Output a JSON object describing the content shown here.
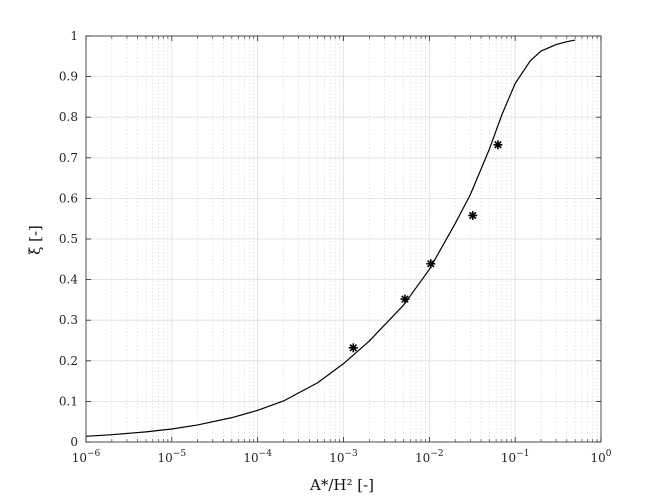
{
  "chart_data": {
    "type": "line",
    "xscale": "log",
    "xlim": [
      1e-06,
      1
    ],
    "ylim": [
      0,
      1
    ],
    "grid": true,
    "xlabel": "A*/H² [-]",
    "ylabel": "ξ [-]",
    "title": "",
    "x_ticks": [
      {
        "value": 1e-06,
        "base": "10",
        "exp": "−6"
      },
      {
        "value": 1e-05,
        "base": "10",
        "exp": "−5"
      },
      {
        "value": 0.0001,
        "base": "10",
        "exp": "−4"
      },
      {
        "value": 0.001,
        "base": "10",
        "exp": "−3"
      },
      {
        "value": 0.01,
        "base": "10",
        "exp": "−2"
      },
      {
        "value": 0.1,
        "base": "10",
        "exp": "−1"
      },
      {
        "value": 1,
        "base": "10",
        "exp": "0"
      }
    ],
    "y_ticks": [
      {
        "value": 0,
        "label": "0"
      },
      {
        "value": 0.1,
        "label": "0.1"
      },
      {
        "value": 0.2,
        "label": "0.2"
      },
      {
        "value": 0.3,
        "label": "0.3"
      },
      {
        "value": 0.4,
        "label": "0.4"
      },
      {
        "value": 0.5,
        "label": "0.5"
      },
      {
        "value": 0.6,
        "label": "0.6"
      },
      {
        "value": 0.7,
        "label": "0.7"
      },
      {
        "value": 0.8,
        "label": "0.8"
      },
      {
        "value": 0.9,
        "label": "0.9"
      },
      {
        "value": 1,
        "label": "1"
      }
    ],
    "series": [
      {
        "type": "line",
        "color": "#000000",
        "x": [
          1e-06,
          2e-06,
          5e-06,
          1e-05,
          2e-05,
          5e-05,
          0.0001,
          0.0002,
          0.0005,
          0.001,
          0.002,
          0.005,
          0.01,
          0.02,
          0.03,
          0.05,
          0.07,
          0.1,
          0.15,
          0.2,
          0.3,
          0.4,
          0.5
        ],
        "y": [
          0.014,
          0.018,
          0.025,
          0.032,
          0.042,
          0.06,
          0.078,
          0.101,
          0.146,
          0.193,
          0.249,
          0.337,
          0.425,
          0.538,
          0.609,
          0.721,
          0.806,
          0.883,
          0.939,
          0.963,
          0.979,
          0.986,
          0.99
        ]
      },
      {
        "type": "scatter",
        "marker": "asterisk",
        "color": "#000000",
        "x": [
          0.0013,
          0.0052,
          0.0104,
          0.032,
          0.063
        ],
        "y": [
          0.232,
          0.352,
          0.439,
          0.558,
          0.732
        ]
      }
    ]
  }
}
